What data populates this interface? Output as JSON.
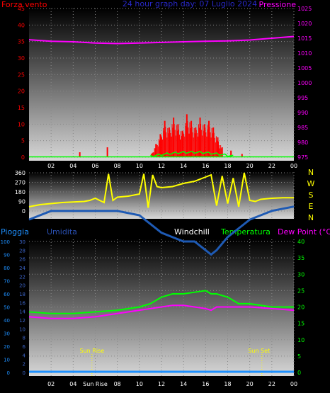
{
  "header": {
    "left_label": "Forza vento",
    "center_label": "24 hour graph day: 07 Luglio 2024",
    "right_label": "Pressione"
  },
  "colors": {
    "wind": "#ff0000",
    "wind_avg": "#00ff00",
    "pressure": "#ff00ff",
    "direction": "#ffff00",
    "humidity": "#1e5ab4",
    "temperature": "#00ff00",
    "dewpoint": "#ff00ff",
    "rain": "#1e90ff",
    "sun": "#ffff00"
  },
  "chart_data": [
    {
      "type": "bar",
      "title": "24 hour graph day: 07 Luglio 2024",
      "x_ticks": [
        "02",
        "04",
        "06",
        "08",
        "10",
        "12",
        "14",
        "16",
        "18",
        "20",
        "22",
        "00"
      ],
      "y_left_label": "Forza vento",
      "y_left_ticks": [
        0,
        5,
        10,
        15,
        20,
        25,
        30,
        35,
        40,
        45
      ],
      "y_left_lim": [
        0,
        45
      ],
      "y_right_label": "Pressione",
      "y_right_ticks": [
        975,
        980,
        985,
        990,
        995,
        1000,
        1005,
        1010,
        1015,
        1020,
        1025
      ],
      "y_right_lim": [
        975,
        1025
      ],
      "series": [
        {
          "name": "Forza vento",
          "axis": "left",
          "x": [
            4.6,
            7.1,
            11.1,
            11.5,
            11.9,
            12.3,
            12.7,
            13.1,
            13.5,
            13.9,
            14.3,
            14.7,
            15.1,
            15.5,
            15.9,
            16.3,
            16.7,
            17.1,
            17.5,
            18.3,
            19.3
          ],
          "values": [
            1.5,
            3,
            1,
            4,
            7,
            11,
            9,
            12,
            10,
            8,
            13,
            11,
            9,
            12,
            10,
            11,
            9,
            6,
            3,
            2,
            1
          ]
        },
        {
          "name": "Pressione",
          "axis": "right",
          "x": [
            0,
            2,
            4,
            6,
            8,
            10,
            12,
            14,
            16,
            18,
            20,
            22,
            24
          ],
          "values": [
            1014.5,
            1014,
            1013.8,
            1013.4,
            1013.2,
            1013.4,
            1013.6,
            1013.8,
            1014,
            1014.1,
            1014.4,
            1015,
            1015.6
          ]
        }
      ]
    },
    {
      "type": "line",
      "y_ticks": [
        0,
        90,
        180,
        270,
        360
      ],
      "y_lim": [
        0,
        360
      ],
      "right_labels": [
        "N",
        "W",
        "S",
        "E",
        "N"
      ],
      "x": [
        0,
        1,
        2,
        3,
        4,
        5,
        5.5,
        6,
        6.8,
        7.2,
        7.6,
        8,
        9,
        10,
        10.4,
        10.8,
        11.2,
        11.6,
        12,
        13,
        14,
        15,
        16,
        16.5,
        17,
        17.5,
        18,
        18.5,
        19,
        19.5,
        20,
        20.5,
        21,
        22,
        23,
        24
      ],
      "values": [
        40,
        60,
        70,
        80,
        85,
        90,
        100,
        120,
        80,
        350,
        100,
        130,
        140,
        160,
        350,
        30,
        340,
        230,
        220,
        230,
        260,
        280,
        320,
        340,
        50,
        330,
        70,
        310,
        40,
        360,
        100,
        90,
        110,
        120,
        125,
        125
      ]
    },
    {
      "type": "line",
      "left_labels": [
        "Pioggia",
        "Umidita"
      ],
      "right_labels": [
        "Windchill",
        "Temperatura",
        "Dew Point (°C)"
      ],
      "y_rain_ticks": [
        0,
        10,
        20,
        30,
        40,
        50,
        60,
        70,
        80,
        90,
        100
      ],
      "y_umid_ticks": [
        0,
        2,
        4,
        6,
        8,
        10,
        12,
        14,
        16,
        18,
        20,
        22,
        24,
        26,
        28,
        30
      ],
      "y_temp_ticks": [
        0,
        5,
        10,
        15,
        20,
        25,
        30,
        35,
        40
      ],
      "y_temp_lim": [
        0,
        40
      ],
      "x_ticks": [
        "02",
        "04",
        "Sun Rise",
        "08",
        "10",
        "12",
        "14",
        "16",
        "18",
        "20",
        "22",
        "00"
      ],
      "sun_rise_label": "Sun Rise",
      "sun_set_label": "Sun Set",
      "sun_rise_hour": 5.7,
      "sun_set_hour": 21.1,
      "series": [
        {
          "name": "Umidita",
          "x": [
            0,
            2,
            4,
            6,
            8,
            10,
            11,
            12,
            13,
            14,
            15,
            16,
            16.5,
            17,
            18,
            19,
            20,
            22,
            24
          ],
          "values": [
            35,
            37,
            37,
            37,
            37,
            36,
            34,
            32,
            31,
            30,
            30,
            28,
            27,
            28,
            31,
            33,
            35,
            37,
            38
          ]
        },
        {
          "name": "Temperatura",
          "x": [
            0,
            2,
            4,
            6,
            8,
            10,
            11,
            12,
            13,
            14,
            15,
            16,
            16.5,
            17,
            18,
            19,
            20,
            22,
            24
          ],
          "values": [
            18.5,
            18,
            18,
            18.5,
            19,
            20,
            21,
            23,
            24,
            24,
            24.5,
            25,
            24,
            24,
            23,
            21,
            21,
            20,
            20
          ]
        },
        {
          "name": "Dew Point (°C)",
          "x": [
            0,
            2,
            4,
            6,
            8,
            10,
            11,
            12,
            13,
            14,
            15,
            16,
            16.5,
            17,
            18,
            19,
            20,
            22,
            24
          ],
          "values": [
            17,
            16.5,
            16.5,
            17,
            18,
            19,
            19.5,
            20,
            20.5,
            20.5,
            20,
            19.5,
            19,
            20,
            20,
            20,
            20,
            19.5,
            19
          ]
        },
        {
          "name": "Pioggia",
          "x": [
            0,
            24
          ],
          "values": [
            0,
            0
          ]
        }
      ]
    }
  ]
}
